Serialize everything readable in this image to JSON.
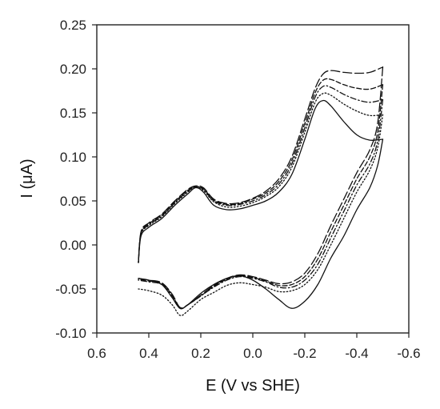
{
  "chart_data": {
    "type": "line",
    "xlabel": "E (V vs SHE)",
    "ylabel": "I (μA)",
    "xlim": [
      0.6,
      -0.6
    ],
    "ylim": [
      -0.1,
      0.25
    ],
    "x_inverted": true,
    "grid": false,
    "legend": "none",
    "xticks": [
      "0.6",
      "0.4",
      "0.2",
      "0.0",
      "-0.2",
      "-0.4",
      "-0.6"
    ],
    "yticks": [
      "-0.10",
      "-0.05",
      "0.00",
      "0.05",
      "0.10",
      "0.15",
      "0.20",
      "0.25"
    ],
    "series": [
      {
        "style": "solid",
        "forward_x": [
          0.44,
          0.43,
          0.4,
          0.35,
          0.3,
          0.25,
          0.22,
          0.19,
          0.15,
          0.1,
          0.05,
          0.0,
          -0.05,
          -0.1,
          -0.15,
          -0.2,
          -0.24,
          -0.27,
          -0.3,
          -0.35,
          -0.4,
          -0.45,
          -0.5
        ],
        "forward_y": [
          -0.02,
          0.01,
          0.02,
          0.03,
          0.045,
          0.058,
          0.065,
          0.06,
          0.045,
          0.04,
          0.041,
          0.045,
          0.05,
          0.06,
          0.08,
          0.12,
          0.155,
          0.164,
          0.158,
          0.14,
          0.125,
          0.119,
          0.12
        ],
        "reverse_x": [
          -0.5,
          -0.48,
          -0.45,
          -0.4,
          -0.35,
          -0.3,
          -0.25,
          -0.2,
          -0.15,
          -0.1,
          -0.05,
          0.0,
          0.05,
          0.1,
          0.15,
          0.2,
          0.25,
          0.28,
          0.31,
          0.35,
          0.4,
          0.44
        ],
        "reverse_y": [
          0.12,
          0.09,
          0.065,
          0.04,
          0.01,
          -0.015,
          -0.045,
          -0.064,
          -0.072,
          -0.062,
          -0.05,
          -0.04,
          -0.035,
          -0.038,
          -0.045,
          -0.055,
          -0.068,
          -0.072,
          -0.06,
          -0.045,
          -0.04,
          -0.038
        ]
      },
      {
        "style": "dotted",
        "forward_x": [
          0.44,
          0.43,
          0.4,
          0.35,
          0.3,
          0.25,
          0.22,
          0.19,
          0.15,
          0.1,
          0.05,
          0.0,
          -0.05,
          -0.1,
          -0.15,
          -0.2,
          -0.24,
          -0.27,
          -0.3,
          -0.35,
          -0.4,
          -0.45,
          -0.5
        ],
        "forward_y": [
          -0.02,
          0.012,
          0.022,
          0.032,
          0.047,
          0.06,
          0.066,
          0.062,
          0.049,
          0.043,
          0.044,
          0.048,
          0.055,
          0.066,
          0.088,
          0.128,
          0.162,
          0.172,
          0.17,
          0.16,
          0.152,
          0.147,
          0.148
        ],
        "reverse_x": [
          -0.5,
          -0.48,
          -0.45,
          -0.4,
          -0.35,
          -0.3,
          -0.25,
          -0.2,
          -0.15,
          -0.1,
          -0.05,
          0.0,
          0.05,
          0.1,
          0.15,
          0.2,
          0.25,
          0.28,
          0.31,
          0.35,
          0.4,
          0.44
        ],
        "reverse_y": [
          0.148,
          0.11,
          0.085,
          0.06,
          0.03,
          0.0,
          -0.028,
          -0.045,
          -0.052,
          -0.053,
          -0.048,
          -0.045,
          -0.043,
          -0.046,
          -0.054,
          -0.062,
          -0.075,
          -0.08,
          -0.068,
          -0.057,
          -0.052,
          -0.05
        ]
      },
      {
        "style": "dash-dot",
        "forward_x": [
          0.44,
          0.43,
          0.4,
          0.35,
          0.3,
          0.25,
          0.22,
          0.19,
          0.15,
          0.1,
          0.05,
          0.0,
          -0.05,
          -0.1,
          -0.15,
          -0.2,
          -0.24,
          -0.27,
          -0.3,
          -0.35,
          -0.4,
          -0.45,
          -0.5
        ],
        "forward_y": [
          -0.02,
          0.013,
          0.023,
          0.033,
          0.048,
          0.061,
          0.066,
          0.063,
          0.05,
          0.045,
          0.046,
          0.05,
          0.057,
          0.069,
          0.092,
          0.133,
          0.168,
          0.18,
          0.179,
          0.171,
          0.165,
          0.162,
          0.165
        ],
        "reverse_x": [
          -0.5,
          -0.48,
          -0.45,
          -0.4,
          -0.35,
          -0.3,
          -0.25,
          -0.2,
          -0.15,
          -0.1,
          -0.05,
          0.0,
          0.05,
          0.1,
          0.15,
          0.2,
          0.25,
          0.28,
          0.31,
          0.35,
          0.4,
          0.44
        ],
        "reverse_y": [
          0.165,
          0.118,
          0.092,
          0.068,
          0.038,
          0.008,
          -0.022,
          -0.04,
          -0.048,
          -0.048,
          -0.042,
          -0.038,
          -0.036,
          -0.04,
          -0.048,
          -0.058,
          -0.068,
          -0.072,
          -0.058,
          -0.045,
          -0.042,
          -0.04
        ]
      },
      {
        "style": "medium-dash",
        "forward_x": [
          0.44,
          0.43,
          0.4,
          0.35,
          0.3,
          0.25,
          0.22,
          0.19,
          0.15,
          0.1,
          0.05,
          0.0,
          -0.05,
          -0.1,
          -0.15,
          -0.2,
          -0.24,
          -0.27,
          -0.3,
          -0.35,
          -0.4,
          -0.45,
          -0.5
        ],
        "forward_y": [
          -0.02,
          0.014,
          0.024,
          0.034,
          0.049,
          0.062,
          0.066,
          0.064,
          0.051,
          0.046,
          0.047,
          0.052,
          0.059,
          0.072,
          0.096,
          0.138,
          0.173,
          0.187,
          0.188,
          0.182,
          0.178,
          0.177,
          0.182
        ],
        "reverse_x": [
          -0.5,
          -0.48,
          -0.45,
          -0.4,
          -0.35,
          -0.3,
          -0.25,
          -0.2,
          -0.15,
          -0.1,
          -0.05,
          0.0,
          0.05,
          0.1,
          0.15,
          0.2,
          0.25,
          0.28,
          0.31,
          0.35,
          0.4,
          0.44
        ],
        "reverse_y": [
          0.182,
          0.128,
          0.1,
          0.075,
          0.045,
          0.015,
          -0.016,
          -0.036,
          -0.045,
          -0.046,
          -0.041,
          -0.037,
          -0.035,
          -0.039,
          -0.047,
          -0.058,
          -0.068,
          -0.072,
          -0.057,
          -0.044,
          -0.041,
          -0.039
        ]
      },
      {
        "style": "long-dash",
        "forward_x": [
          0.44,
          0.43,
          0.4,
          0.35,
          0.3,
          0.25,
          0.22,
          0.19,
          0.15,
          0.1,
          0.05,
          0.0,
          -0.05,
          -0.1,
          -0.15,
          -0.2,
          -0.24,
          -0.27,
          -0.3,
          -0.35,
          -0.4,
          -0.45,
          -0.5
        ],
        "forward_y": [
          -0.02,
          0.015,
          0.025,
          0.035,
          0.05,
          0.063,
          0.067,
          0.065,
          0.052,
          0.047,
          0.048,
          0.053,
          0.061,
          0.075,
          0.1,
          0.143,
          0.178,
          0.194,
          0.198,
          0.196,
          0.195,
          0.196,
          0.202
        ],
        "reverse_x": [
          -0.5,
          -0.48,
          -0.45,
          -0.4,
          -0.35,
          -0.3,
          -0.25,
          -0.2,
          -0.15,
          -0.1,
          -0.05,
          0.0,
          0.05,
          0.1,
          0.15,
          0.2,
          0.25,
          0.28,
          0.31,
          0.35,
          0.4,
          0.44
        ],
        "reverse_y": [
          0.202,
          0.138,
          0.108,
          0.082,
          0.052,
          0.022,
          -0.01,
          -0.032,
          -0.042,
          -0.044,
          -0.04,
          -0.036,
          -0.034,
          -0.038,
          -0.046,
          -0.057,
          -0.068,
          -0.071,
          -0.056,
          -0.043,
          -0.04,
          -0.038
        ]
      }
    ]
  }
}
